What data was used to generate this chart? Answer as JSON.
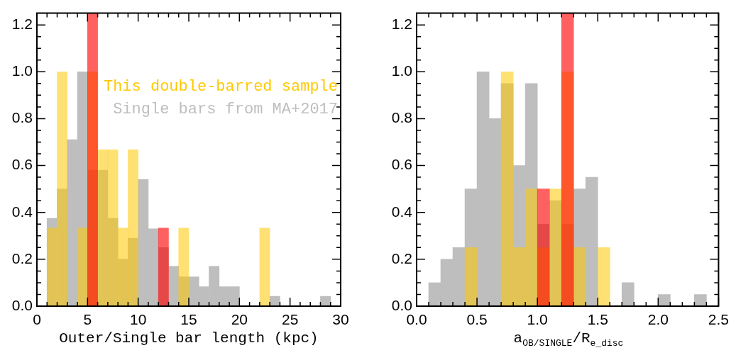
{
  "chart_data": [
    {
      "type": "histogram",
      "xlabel": "Outer/Single bar length (kpc)",
      "legend": "top right",
      "grid": false,
      "bins": [
        0,
        1,
        2,
        3,
        4,
        5,
        6,
        7,
        8,
        9,
        10,
        11,
        12,
        13,
        14,
        15,
        16,
        17,
        18,
        19,
        20,
        21,
        22,
        23,
        24,
        25,
        26,
        27,
        28,
        29,
        30
      ],
      "series": [
        {
          "name": "Single bars from MA+2017",
          "color": "#bebebe",
          "values": [
            0,
            0.375,
            0.5,
            0.71,
            1.0,
            0.58,
            0.58,
            0.375,
            0.2,
            0.29,
            0.54,
            0.33,
            0.25,
            0.17,
            0.125,
            0.125,
            0.083,
            0.17,
            0.083,
            0.083,
            0,
            0,
            0,
            0.042,
            0,
            0,
            0,
            0,
            0.042,
            0
          ]
        },
        {
          "name": "This double-barred sample",
          "color": "#ffc800",
          "values": [
            0,
            0.333,
            1.0,
            0,
            0.333,
            1.0,
            0.667,
            0.667,
            0.333,
            0.667,
            0,
            0,
            0,
            0,
            0.333,
            0,
            0,
            0,
            0,
            0,
            0,
            0,
            0.333,
            0,
            0,
            0,
            0,
            0,
            0,
            0
          ]
        },
        {
          "color": "#ff0000",
          "values": [
            0,
            0,
            0,
            0,
            0,
            1.25,
            0,
            0,
            0,
            0,
            0,
            0,
            0.333,
            0,
            0,
            0,
            0,
            0,
            0,
            0,
            0,
            0,
            0,
            0,
            0,
            0,
            0,
            0,
            0,
            0
          ]
        }
      ],
      "xlim": [
        0,
        30
      ],
      "xticks": [
        0,
        {
          "value": 1,
          "label": null
        },
        {
          "value": 2,
          "label": null
        },
        {
          "value": 3,
          "label": null
        },
        {
          "value": 4,
          "label": null
        },
        5,
        {
          "value": 6,
          "label": null
        },
        {
          "value": 7,
          "label": null
        },
        {
          "value": 8,
          "label": null
        },
        {
          "value": 9,
          "label": null
        },
        10,
        {
          "value": 11,
          "label": null
        },
        {
          "value": 12,
          "label": null
        },
        {
          "value": 13,
          "label": null
        },
        {
          "value": 14,
          "label": null
        },
        15,
        {
          "value": 16,
          "label": null
        },
        {
          "value": 17,
          "label": null
        },
        {
          "value": 18,
          "label": null
        },
        {
          "value": 19,
          "label": null
        },
        20,
        {
          "value": 21,
          "label": null
        },
        {
          "value": 22,
          "label": null
        },
        {
          "value": 23,
          "label": null
        },
        {
          "value": 24,
          "label": null
        },
        25,
        {
          "value": 26,
          "label": null
        },
        {
          "value": 27,
          "label": null
        },
        {
          "value": 28,
          "label": null
        },
        {
          "value": 29,
          "label": null
        },
        30
      ],
      "ylim": [
        0,
        1.25
      ],
      "yticks": [
        {
          "value": 0,
          "label": "0.0"
        },
        {
          "value": 0.05,
          "label": null
        },
        {
          "value": 0.1,
          "label": null
        },
        {
          "value": 0.15,
          "label": null
        },
        {
          "value": 0.2,
          "label": "0.2"
        },
        {
          "value": 0.25,
          "label": null
        },
        {
          "value": 0.3,
          "label": null
        },
        {
          "value": 0.35,
          "label": null
        },
        {
          "value": 0.4,
          "label": "0.4"
        },
        {
          "value": 0.45,
          "label": null
        },
        {
          "value": 0.5,
          "label": null
        },
        {
          "value": 0.55,
          "label": null
        },
        {
          "value": 0.6,
          "label": "0.6"
        },
        {
          "value": 0.65,
          "label": null
        },
        {
          "value": 0.7,
          "label": null
        },
        {
          "value": 0.75,
          "label": null
        },
        {
          "value": 0.8,
          "label": "0.8"
        },
        {
          "value": 0.85,
          "label": null
        },
        {
          "value": 0.9,
          "label": null
        },
        {
          "value": 0.95,
          "label": null
        },
        {
          "value": 1.0,
          "label": "1.0"
        },
        {
          "value": 1.05,
          "label": null
        },
        {
          "value": 1.1,
          "label": null
        },
        {
          "value": 1.15,
          "label": null
        },
        {
          "value": 1.2,
          "label": "1.2"
        }
      ]
    },
    {
      "type": "histogram",
      "xlabel": "a$_{OB/SINGLE}$/R$_{e_disc}$",
      "grid": false,
      "bins": [
        0,
        0.1,
        0.2,
        0.3,
        0.4,
        0.5,
        0.6,
        0.7,
        0.8,
        0.9,
        1.0,
        1.1,
        1.2,
        1.3,
        1.4,
        1.5,
        1.6,
        1.7,
        1.8,
        1.9,
        2.0,
        2.1,
        2.2,
        2.3,
        2.4,
        2.5
      ],
      "series": [
        {
          "color": "#bebebe",
          "values": [
            0,
            0.1,
            0.2,
            0.25,
            0.5,
            1.0,
            0.8,
            0.95,
            0.6,
            0.95,
            0.35,
            0.45,
            0.35,
            0.5,
            0.55,
            0,
            0,
            0.1,
            0,
            0,
            0.05,
            0,
            0,
            0.05,
            0
          ]
        },
        {
          "color": "#ffc800",
          "values": [
            0,
            0,
            0,
            0,
            0.25,
            0,
            0,
            1.0,
            0.25,
            0.5,
            0.25,
            0.5,
            1.0,
            0.25,
            0,
            0.25,
            0,
            0,
            0,
            0,
            0,
            0,
            0,
            0,
            0
          ]
        },
        {
          "color": "#ff0000",
          "values": [
            0,
            0,
            0,
            0,
            0,
            0,
            0,
            0,
            0,
            0,
            0.5,
            0,
            1.25,
            0,
            0,
            0,
            0,
            0,
            0,
            0,
            0,
            0,
            0,
            0,
            0
          ]
        }
      ],
      "xlim": [
        0,
        2.5
      ],
      "xticks": [
        {
          "value": 0,
          "label": "0.0"
        },
        {
          "value": 0.1,
          "label": null
        },
        {
          "value": 0.2,
          "label": null
        },
        {
          "value": 0.3,
          "label": null
        },
        {
          "value": 0.4,
          "label": null
        },
        {
          "value": 0.5,
          "label": "0.5"
        },
        {
          "value": 0.6,
          "label": null
        },
        {
          "value": 0.7,
          "label": null
        },
        {
          "value": 0.8,
          "label": null
        },
        {
          "value": 0.9,
          "label": null
        },
        {
          "value": 1.0,
          "label": "1.0"
        },
        {
          "value": 1.1,
          "label": null
        },
        {
          "value": 1.2,
          "label": null
        },
        {
          "value": 1.3,
          "label": null
        },
        {
          "value": 1.4,
          "label": null
        },
        {
          "value": 1.5,
          "label": "1.5"
        },
        {
          "value": 1.6,
          "label": null
        },
        {
          "value": 1.7,
          "label": null
        },
        {
          "value": 1.8,
          "label": null
        },
        {
          "value": 1.9,
          "label": null
        },
        {
          "value": 2.0,
          "label": "2.0"
        },
        {
          "value": 2.1,
          "label": null
        },
        {
          "value": 2.2,
          "label": null
        },
        {
          "value": 2.3,
          "label": null
        },
        {
          "value": 2.4,
          "label": null
        },
        {
          "value": 2.5,
          "label": "2.5"
        }
      ],
      "ylim": [
        0,
        1.25
      ],
      "yticks": [
        {
          "value": 0,
          "label": "0.0"
        },
        {
          "value": 0.05,
          "label": null
        },
        {
          "value": 0.1,
          "label": null
        },
        {
          "value": 0.15,
          "label": null
        },
        {
          "value": 0.2,
          "label": "0.2"
        },
        {
          "value": 0.25,
          "label": null
        },
        {
          "value": 0.3,
          "label": null
        },
        {
          "value": 0.35,
          "label": null
        },
        {
          "value": 0.4,
          "label": "0.4"
        },
        {
          "value": 0.45,
          "label": null
        },
        {
          "value": 0.5,
          "label": null
        },
        {
          "value": 0.55,
          "label": null
        },
        {
          "value": 0.6,
          "label": "0.6"
        },
        {
          "value": 0.65,
          "label": null
        },
        {
          "value": 0.7,
          "label": null
        },
        {
          "value": 0.75,
          "label": null
        },
        {
          "value": 0.8,
          "label": "0.8"
        },
        {
          "value": 0.85,
          "label": null
        },
        {
          "value": 0.9,
          "label": null
        },
        {
          "value": 0.95,
          "label": null
        },
        {
          "value": 1.0,
          "label": "1.0"
        },
        {
          "value": 1.05,
          "label": null
        },
        {
          "value": 1.1,
          "label": null
        },
        {
          "value": 1.15,
          "label": null
        },
        {
          "value": 1.2,
          "label": "1.2"
        }
      ]
    }
  ]
}
